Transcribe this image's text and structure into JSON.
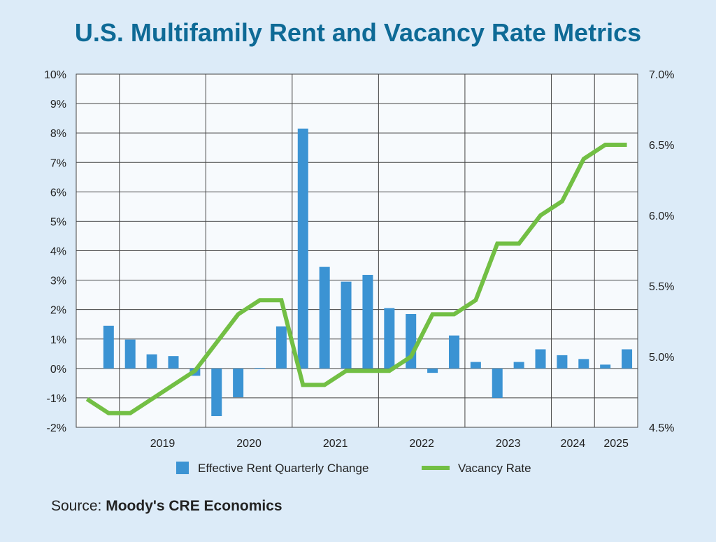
{
  "title": "U.S. Multifamily Rent and Vacancy Rate Metrics",
  "source": {
    "label": "Source:",
    "name": "Moody's CRE Economics"
  },
  "colors": {
    "bar": "#3b93d3",
    "line": "#72bf44",
    "title": "#0e6a96",
    "plot_bg": "#f7fafd",
    "grid": "#444444"
  },
  "chart_data": {
    "type": "bar",
    "x_tick_labels": [
      "2019",
      "2020",
      "2021",
      "2022",
      "2023",
      "2024",
      "2025"
    ],
    "left_axis": {
      "ylim": [
        -2,
        10
      ],
      "ticks": [
        "10%",
        "9%",
        "8%",
        "7%",
        "6%",
        "5%",
        "4%",
        "3%",
        "2%",
        "1%",
        "0%",
        "-1%",
        "-2%"
      ]
    },
    "right_axis": {
      "ylim": [
        4.5,
        7.0
      ],
      "ticks": [
        "7.0%",
        "6.5%",
        "6.0%",
        "5.5%",
        "5.0%",
        "4.5%"
      ]
    },
    "grid": true,
    "legend_position": "bottom",
    "series": [
      {
        "name": "Effective Rent Quarterly Change",
        "type": "bar",
        "axis": "left",
        "values": [
          1.45,
          0.98,
          0.48,
          0.42,
          -0.25,
          -1.62,
          -0.98,
          0.02,
          1.43,
          8.15,
          3.45,
          2.95,
          3.18,
          2.05,
          1.85,
          -0.15,
          1.12,
          0.22,
          -1.0,
          0.22,
          0.65,
          0.45,
          0.32,
          0.13,
          0.65
        ]
      },
      {
        "name": "Vacancy Rate",
        "type": "line",
        "axis": "right",
        "values": [
          4.7,
          4.6,
          4.6,
          4.7,
          4.8,
          4.9,
          5.1,
          5.3,
          5.4,
          5.4,
          4.8,
          4.8,
          4.9,
          4.9,
          4.9,
          5.0,
          5.3,
          5.3,
          5.4,
          5.8,
          5.8,
          6.0,
          6.1,
          6.4,
          6.5,
          6.5
        ]
      }
    ]
  }
}
